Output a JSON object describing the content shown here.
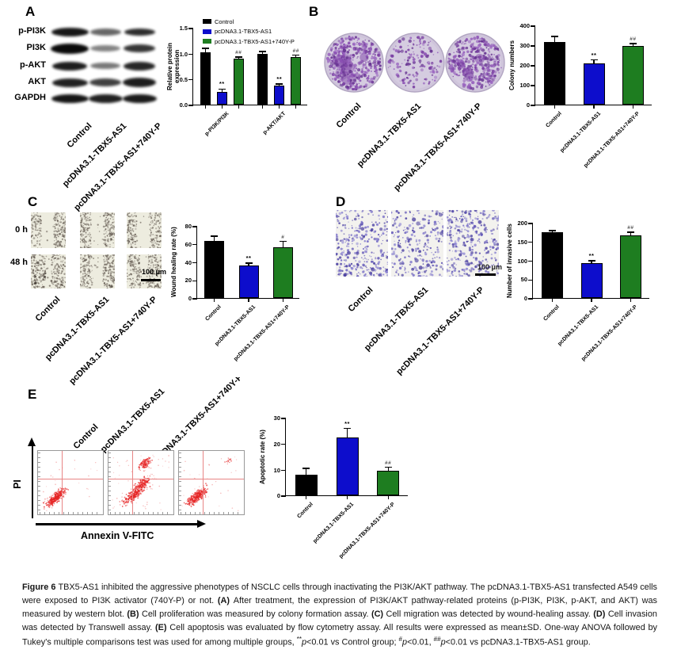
{
  "groups": [
    "Control",
    "pcDNA3.1-TBX5-AS1",
    "pcDNA3.1-TBX5-AS1+740Y-P"
  ],
  "colors": {
    "control_bar": "#000000",
    "tbx5_bar": "#0d0dcc",
    "rescue_bar": "#1e7d20",
    "colony_stain": "#7a3fa2",
    "transwell_stain": "#655ab8",
    "flow_dots": "#e62525",
    "flow_quadrant_lines": "#e88585"
  },
  "panels": {
    "A": {
      "label": "A",
      "blot_rows": [
        "p-PI3K",
        "PI3K",
        "p-AKT",
        "AKT",
        "GAPDH"
      ]
    },
    "B": {
      "label": "B"
    },
    "C": {
      "label": "C",
      "time_rows": [
        "0 h",
        "48 h"
      ],
      "scale_bar": "100 μm"
    },
    "D": {
      "label": "D",
      "scale_bar": "100 μm"
    },
    "E": {
      "label": "E",
      "flow_y_axis": "PI",
      "flow_x_axis": "Annexin V-FITC"
    }
  },
  "chart_data": [
    {
      "id": "A",
      "type": "bar",
      "grouped": true,
      "ylabel": "Relative protein expression",
      "categories": [
        "p-PI3K/PI3K",
        "p-AKT/AKT"
      ],
      "ylim": [
        0,
        1.5
      ],
      "yticks": [
        "0.0",
        "0.5",
        "1.0",
        "1.5"
      ],
      "legend": "top",
      "series": [
        {
          "name": "Control",
          "color": "#000000",
          "values": [
            1.02,
            0.99
          ],
          "errors": [
            0.08,
            0.05
          ],
          "sig": [
            "",
            ""
          ]
        },
        {
          "name": "pcDNA3.1-TBX5-AS1",
          "color": "#0d0dcc",
          "values": [
            0.25,
            0.37
          ],
          "errors": [
            0.06,
            0.04
          ],
          "sig": [
            "**",
            "**"
          ]
        },
        {
          "name": "pcDNA3.1-TBX5-AS1+740Y-P",
          "color": "#1e7d20",
          "values": [
            0.89,
            0.93
          ],
          "errors": [
            0.04,
            0.04
          ],
          "sig": [
            "##",
            "##"
          ]
        }
      ]
    },
    {
      "id": "B",
      "type": "bar",
      "ylabel": "Colony numbers",
      "categories": [
        "Control",
        "pcDNA3.1-TBX5-AS1",
        "pcDNA3.1-TBX5-AS1+740Y-P"
      ],
      "colors": [
        "#000000",
        "#0d0dcc",
        "#1e7d20"
      ],
      "values": [
        315,
        210,
        295
      ],
      "errors": [
        30,
        18,
        15
      ],
      "sig": [
        "",
        "**",
        "##"
      ],
      "ylim": [
        0,
        400
      ],
      "yticks": [
        "0",
        "100",
        "200",
        "300",
        "400"
      ]
    },
    {
      "id": "C",
      "type": "bar",
      "ylabel": "Wound healing rate (%)",
      "categories": [
        "Control",
        "pcDNA3.1-TBX5-AS1",
        "pcDNA3.1-TBX5-AS1+740Y-P"
      ],
      "colors": [
        "#000000",
        "#0d0dcc",
        "#1e7d20"
      ],
      "values": [
        63,
        36,
        56
      ],
      "errors": [
        6,
        3,
        7
      ],
      "sig": [
        "",
        "**",
        "#"
      ],
      "ylim": [
        0,
        80
      ],
      "yticks": [
        "0",
        "20",
        "40",
        "60",
        "80"
      ]
    },
    {
      "id": "D",
      "type": "bar",
      "ylabel": "Number of invasive cells",
      "categories": [
        "Control",
        "pcDNA3.1-TBX5-AS1",
        "pcDNA3.1-TBX5-AS1+740Y-P"
      ],
      "colors": [
        "#000000",
        "#0d0dcc",
        "#1e7d20"
      ],
      "values": [
        175,
        92,
        167
      ],
      "errors": [
        5,
        8,
        8
      ],
      "sig": [
        "",
        "**",
        "##"
      ],
      "ylim": [
        0,
        200
      ],
      "yticks": [
        "0",
        "50",
        "100",
        "150",
        "200"
      ]
    },
    {
      "id": "E",
      "type": "bar",
      "ylabel": "Apoptotic rate (%)",
      "categories": [
        "Control",
        "pcDNA3.1-TBX5-AS1",
        "pcDNA3.1-TBX5-AS1+740Y-P"
      ],
      "colors": [
        "#000000",
        "#0d0dcc",
        "#1e7d20"
      ],
      "values": [
        8,
        22.5,
        9.5
      ],
      "errors": [
        2.5,
        3.5,
        1.5
      ],
      "sig": [
        "",
        "**",
        "##"
      ],
      "ylim": [
        0,
        30
      ],
      "yticks": [
        "0",
        "10",
        "20",
        "30"
      ]
    }
  ],
  "caption": {
    "segments": [
      {
        "text": "Figure 6 ",
        "bold": true
      },
      {
        "text": "TBX5-AS1 inhibited the aggressive phenotypes of NSCLC cells through inactivating the PI3K/AKT pathway. The pcDNA3.1-TBX5-AS1 transfected A549 cells were exposed to PI3K activator (740Y-P) or not. "
      },
      {
        "text": "(A) ",
        "bold": true
      },
      {
        "text": "After treatment, the expression of PI3K/AKT pathway-related proteins (p-PI3K, PI3K, p-AKT, and AKT) was measured by western blot. "
      },
      {
        "text": "(B) ",
        "bold": true
      },
      {
        "text": "Cell proliferation was measured by colony formation assay. "
      },
      {
        "text": "(C) ",
        "bold": true
      },
      {
        "text": "Cell migration was detected by wound-healing assay. "
      },
      {
        "text": "(D) ",
        "bold": true
      },
      {
        "text": "Cell invasion was detected by Transwell assay. "
      },
      {
        "text": "(E) ",
        "bold": true
      },
      {
        "text": "Cell apoptosis was evaluated by flow cytometry assay. All results were expressed as mean±SD. One-way ANOVA followed by Tukey's multiple comparisons test was used for among multiple groups, "
      },
      {
        "text": "**",
        "sup": true
      },
      {
        "text": "p",
        "italic": true
      },
      {
        "text": "<0.01 vs Control group; "
      },
      {
        "text": "#",
        "sup": true
      },
      {
        "text": "p",
        "italic": true
      },
      {
        "text": "<0.01, ",
        "italicOff": true
      },
      {
        "text": "##",
        "sup": true
      },
      {
        "text": "p",
        "italic": true
      },
      {
        "text": "<0.01 vs pcDNA3.1-TBX5-AS1 group."
      }
    ]
  }
}
